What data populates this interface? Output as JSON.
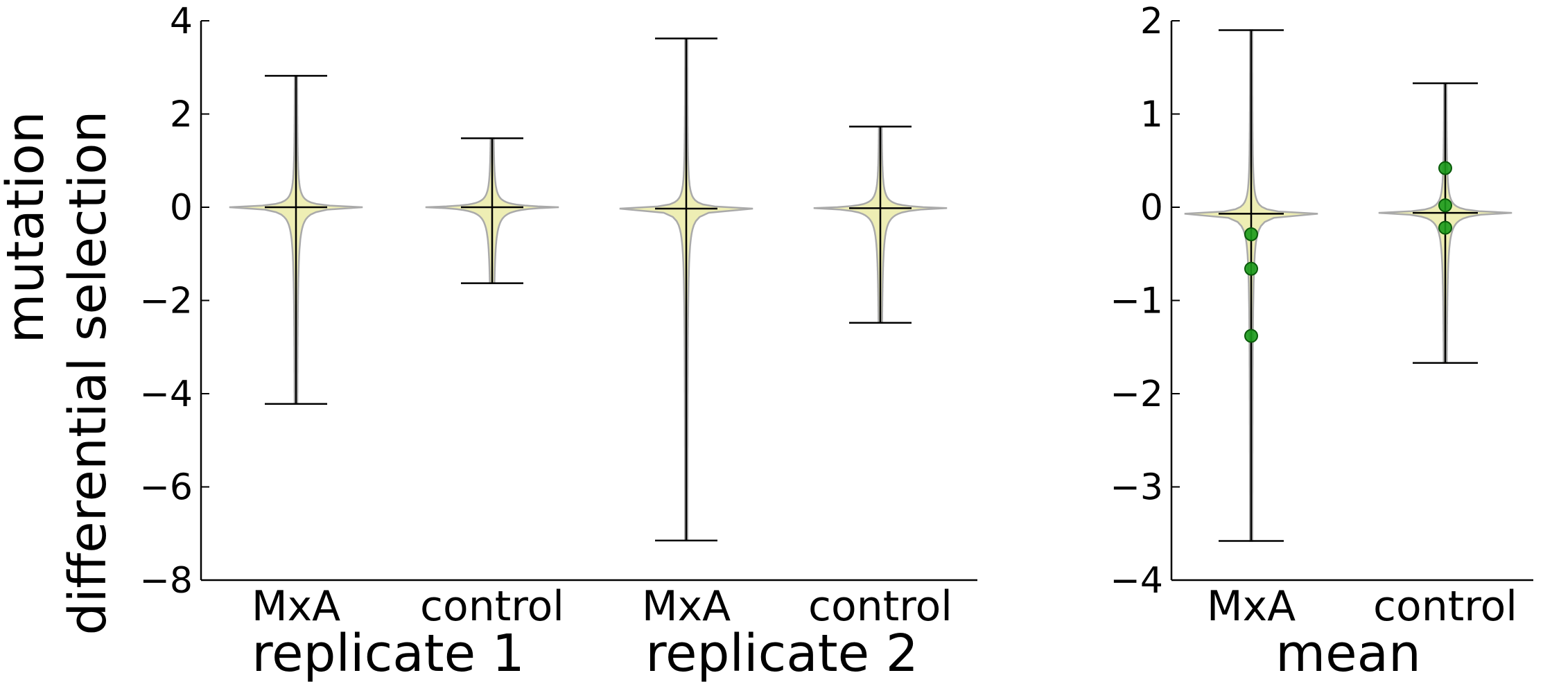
{
  "chart_data": [
    {
      "type": "violin",
      "ylabel_lines": [
        "mutation",
        "differential selection"
      ],
      "ylim": [
        -8,
        4
      ],
      "yticks": [
        4,
        2,
        0,
        -2,
        -4,
        -6,
        -8
      ],
      "groups": [
        {
          "label": "replicate 1",
          "violins": [
            {
              "category": "MxA",
              "min": -4.22,
              "max": 2.82,
              "median": 0.0
            },
            {
              "category": "control",
              "min": -1.63,
              "max": 1.48,
              "median": 0.0
            }
          ]
        },
        {
          "label": "replicate 2",
          "violins": [
            {
              "category": "MxA",
              "min": -7.15,
              "max": 3.62,
              "median": -0.03
            },
            {
              "category": "control",
              "min": -2.48,
              "max": 1.73,
              "median": -0.02
            }
          ]
        }
      ],
      "fill_color": "#eeeeb4",
      "edge_color": "#aaaaaa"
    },
    {
      "type": "violin",
      "ylim": [
        -4,
        2
      ],
      "yticks": [
        2,
        1,
        0,
        -1,
        -2,
        -3,
        -4
      ],
      "groups": [
        {
          "label": "mean",
          "violins": [
            {
              "category": "MxA",
              "min": -3.58,
              "max": 1.9,
              "median": -0.07,
              "points": [
                -0.29,
                -0.66,
                -1.38
              ]
            },
            {
              "category": "control",
              "min": -1.67,
              "max": 1.33,
              "median": -0.06,
              "points": [
                0.42,
                0.02,
                -0.22
              ]
            }
          ]
        }
      ],
      "fill_color": "#eeeeb4",
      "edge_color": "#aaaaaa",
      "point_color": "#1a9a1a"
    }
  ]
}
